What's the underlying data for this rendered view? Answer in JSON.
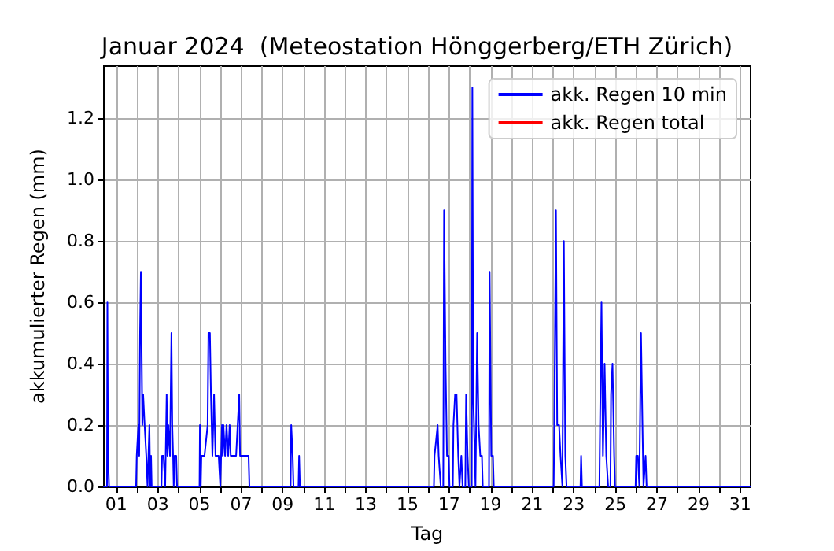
{
  "chart_data": {
    "type": "line",
    "title": "Januar 2024  (Meteostation Hönggerberg/ETH Zürich)",
    "xlabel": "Tag",
    "ylabel": "akkumulierter Regen (mm)",
    "xlim": [
      0.4,
      31.5
    ],
    "ylim": [
      0,
      1.37
    ],
    "xticks": [
      {
        "value": 1,
        "label": "01"
      },
      {
        "value": 2,
        "label": null
      },
      {
        "value": 3,
        "label": "03"
      },
      {
        "value": 4,
        "label": null
      },
      {
        "value": 5,
        "label": "05"
      },
      {
        "value": 6,
        "label": null
      },
      {
        "value": 7,
        "label": "07"
      },
      {
        "value": 8,
        "label": null
      },
      {
        "value": 9,
        "label": "09"
      },
      {
        "value": 10,
        "label": null
      },
      {
        "value": 11,
        "label": "11"
      },
      {
        "value": 12,
        "label": null
      },
      {
        "value": 13,
        "label": "13"
      },
      {
        "value": 14,
        "label": null
      },
      {
        "value": 15,
        "label": "15"
      },
      {
        "value": 16,
        "label": null
      },
      {
        "value": 17,
        "label": "17"
      },
      {
        "value": 18,
        "label": null
      },
      {
        "value": 19,
        "label": "19"
      },
      {
        "value": 20,
        "label": null
      },
      {
        "value": 21,
        "label": "21"
      },
      {
        "value": 22,
        "label": null
      },
      {
        "value": 23,
        "label": "23"
      },
      {
        "value": 24,
        "label": null
      },
      {
        "value": 25,
        "label": "25"
      },
      {
        "value": 26,
        "label": null
      },
      {
        "value": 27,
        "label": "27"
      },
      {
        "value": 28,
        "label": null
      },
      {
        "value": 29,
        "label": "29"
      },
      {
        "value": 30,
        "label": null
      },
      {
        "value": 31,
        "label": "31"
      }
    ],
    "yticks": [
      {
        "value": 0,
        "label": "0.0"
      },
      {
        "value": 0.2,
        "label": "0.2"
      },
      {
        "value": 0.4,
        "label": "0.4"
      },
      {
        "value": 0.6,
        "label": "0.6"
      },
      {
        "value": 0.8,
        "label": "0.8"
      },
      {
        "value": 1.0,
        "label": "1.0"
      },
      {
        "value": 1.2,
        "label": "1.2"
      }
    ],
    "grid": true,
    "legend": "top right",
    "marker": "none",
    "line_style": "solid",
    "series": [
      {
        "name": "akk. Regen 10 min",
        "color": "#0000ff",
        "x": [
          0.4,
          0.55,
          0.57,
          0.6,
          0.65,
          1.95,
          1.98,
          2.06,
          2.1,
          2.14,
          2.18,
          2.21,
          2.25,
          2.29,
          2.36,
          2.44,
          2.5,
          2.59,
          2.63,
          2.67,
          2.7,
          3.17,
          3.2,
          3.27,
          3.35,
          3.42,
          3.46,
          3.5,
          3.58,
          3.65,
          3.69,
          3.73,
          3.76,
          3.8,
          3.88,
          3.92,
          5.0,
          5.02,
          5.06,
          5.09,
          5.24,
          5.39,
          5.43,
          5.5,
          5.55,
          5.62,
          5.7,
          5.77,
          5.92,
          6.0,
          6.08,
          6.12,
          6.15,
          6.23,
          6.3,
          6.38,
          6.45,
          6.5,
          6.61,
          6.76,
          6.91,
          6.95,
          7.06,
          7.21,
          7.36,
          7.4,
          9.38,
          9.41,
          9.48,
          9.52,
          9.76,
          9.79,
          9.83,
          16.27,
          16.3,
          16.45,
          16.5,
          16.6,
          16.72,
          16.76,
          16.83,
          16.9,
          16.98,
          17.02,
          17.18,
          17.21,
          17.29,
          17.36,
          17.44,
          17.5,
          17.59,
          17.65,
          17.78,
          17.82,
          17.89,
          17.95,
          18.09,
          18.12,
          18.16,
          18.2,
          18.27,
          18.35,
          18.42,
          18.5,
          18.58,
          18.62,
          18.92,
          18.95,
          19.03,
          19.11,
          19.15,
          22.03,
          22.06,
          22.14,
          22.2,
          22.29,
          22.36,
          22.45,
          22.49,
          22.52,
          22.59,
          22.65,
          23.32,
          23.35,
          23.39,
          24.23,
          24.26,
          24.33,
          24.4,
          24.48,
          24.56,
          24.65,
          24.76,
          24.79,
          24.86,
          24.94,
          24.98,
          25.97,
          26.0,
          26.08,
          26.15,
          26.23,
          26.3,
          26.35,
          26.45,
          26.5,
          31.5
        ],
        "values": [
          0,
          0,
          0.6,
          0.1,
          0,
          0,
          0.1,
          0.2,
          0.1,
          0.5,
          0.7,
          0.7,
          0.2,
          0.3,
          0.2,
          0.1,
          0,
          0.2,
          0,
          0.1,
          0,
          0,
          0.1,
          0.1,
          0,
          0.3,
          0.1,
          0.2,
          0.1,
          0.5,
          0.2,
          0.1,
          0,
          0.1,
          0.1,
          0,
          0,
          0.2,
          0,
          0.1,
          0.1,
          0.2,
          0.5,
          0.5,
          0.3,
          0.1,
          0.3,
          0.1,
          0.1,
          0,
          0.2,
          0.1,
          0.2,
          0.1,
          0.2,
          0.1,
          0.2,
          0.1,
          0.1,
          0.1,
          0.3,
          0.1,
          0.1,
          0.1,
          0.1,
          0,
          0,
          0.2,
          0.1,
          0,
          0,
          0.1,
          0,
          0,
          0.1,
          0.2,
          0.1,
          0,
          0,
          0.9,
          0.4,
          0.1,
          0.1,
          0,
          0,
          0.2,
          0.3,
          0.3,
          0.1,
          0,
          0.1,
          0,
          0,
          0.3,
          0.1,
          0,
          0,
          1.3,
          0.3,
          0.2,
          0,
          0.5,
          0.2,
          0.1,
          0.1,
          0,
          0,
          0.7,
          0.1,
          0.1,
          0,
          0,
          0.2,
          0.9,
          0.2,
          0.2,
          0.1,
          0,
          0,
          0.8,
          0.1,
          0,
          0,
          0.1,
          0,
          0,
          0.2,
          0.6,
          0.1,
          0.4,
          0.1,
          0,
          0,
          0.3,
          0.4,
          0.1,
          0,
          0,
          0.1,
          0.1,
          0,
          0.5,
          0.2,
          0,
          0.1,
          0,
          0
        ]
      },
      {
        "name": "akk. Regen total",
        "color": "#ff0000"
      }
    ]
  }
}
